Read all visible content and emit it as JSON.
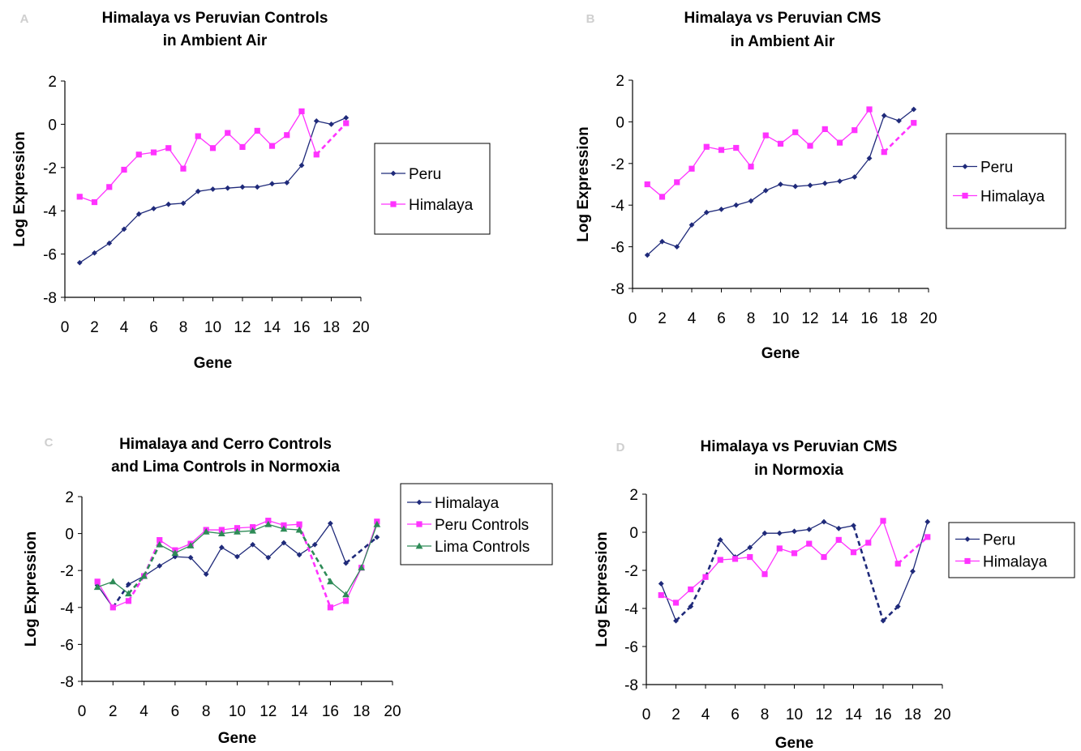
{
  "chart_data": [
    {
      "type": "line",
      "panel": "A",
      "title": [
        "Himalaya vs Peruvian Controls",
        "in Ambient Air"
      ],
      "xlabel": "Gene",
      "ylabel": "Log Expression",
      "xlim": [
        0,
        20
      ],
      "ylim": [
        -8,
        2
      ],
      "xticks": [
        0,
        2,
        4,
        6,
        8,
        10,
        12,
        14,
        16,
        18,
        20
      ],
      "yticks": [
        2,
        0,
        -2,
        -4,
        -6,
        -8
      ],
      "grid": false,
      "legend_position": "right",
      "series": [
        {
          "name": "Peru",
          "color": "#1f2a7a",
          "marker": "diamond",
          "x": [
            1,
            2,
            3,
            4,
            5,
            6,
            7,
            8,
            9,
            10,
            11,
            12,
            13,
            14,
            15,
            16,
            17,
            18,
            19
          ],
          "y": [
            -6.4,
            -5.95,
            -5.5,
            -4.85,
            -4.15,
            -3.9,
            -3.7,
            -3.65,
            -3.1,
            -3.0,
            -2.95,
            -2.9,
            -2.9,
            -2.75,
            -2.7,
            -1.9,
            0.15,
            0.0,
            0.3
          ],
          "dashed_segments": []
        },
        {
          "name": "Himalaya",
          "color": "#ff33ff",
          "marker": "square",
          "x": [
            1,
            2,
            3,
            4,
            5,
            6,
            7,
            8,
            9,
            10,
            11,
            12,
            13,
            14,
            15,
            16,
            17,
            18,
            19
          ],
          "y": [
            -3.35,
            -3.6,
            -2.9,
            -2.1,
            -1.4,
            -1.3,
            -1.1,
            -2.05,
            -0.55,
            -1.1,
            -0.4,
            -1.05,
            -0.3,
            -1.0,
            -0.5,
            0.6,
            -1.4,
            null,
            0.05
          ],
          "dashed_segments": [
            [
              17,
              19
            ]
          ]
        }
      ]
    },
    {
      "type": "line",
      "panel": "B",
      "title": [
        "Himalaya vs Peruvian CMS",
        "in Ambient Air"
      ],
      "xlabel": "Gene",
      "ylabel": "Log Expression",
      "xlim": [
        0,
        20
      ],
      "ylim": [
        -8,
        2
      ],
      "xticks": [
        0,
        2,
        4,
        6,
        8,
        10,
        12,
        14,
        16,
        18,
        20
      ],
      "yticks": [
        2,
        0,
        -2,
        -4,
        -6,
        -8
      ],
      "grid": false,
      "legend_position": "right",
      "series": [
        {
          "name": "Peru",
          "color": "#1f2a7a",
          "marker": "diamond",
          "x": [
            1,
            2,
            3,
            4,
            5,
            6,
            7,
            8,
            9,
            10,
            11,
            12,
            13,
            14,
            15,
            16,
            17,
            18,
            19
          ],
          "y": [
            -6.4,
            -5.75,
            -6.0,
            -4.95,
            -4.35,
            -4.2,
            -4.0,
            -3.8,
            -3.3,
            -3.0,
            -3.1,
            -3.05,
            -2.95,
            -2.85,
            -2.65,
            -1.75,
            0.3,
            0.05,
            0.6
          ],
          "dashed_segments": []
        },
        {
          "name": "Himalaya",
          "color": "#ff33ff",
          "marker": "square",
          "x": [
            1,
            2,
            3,
            4,
            5,
            6,
            7,
            8,
            9,
            10,
            11,
            12,
            13,
            14,
            15,
            16,
            17,
            18,
            19
          ],
          "y": [
            -3.0,
            -3.6,
            -2.9,
            -2.25,
            -1.2,
            -1.35,
            -1.25,
            -2.15,
            -0.65,
            -1.05,
            -0.5,
            -1.15,
            -0.35,
            -1.0,
            -0.4,
            0.6,
            -1.45,
            null,
            -0.05
          ],
          "dashed_segments": [
            [
              17,
              19
            ]
          ]
        }
      ]
    },
    {
      "type": "line",
      "panel": "C",
      "title": [
        "Himalaya and Cerro Controls",
        "and Lima Controls in Normoxia"
      ],
      "xlabel": "Gene",
      "ylabel": "Log Expression",
      "xlim": [
        0,
        20
      ],
      "ylim": [
        -8,
        2
      ],
      "xticks": [
        0,
        2,
        4,
        6,
        8,
        10,
        12,
        14,
        16,
        18,
        20
      ],
      "yticks": [
        2,
        0,
        -2,
        -4,
        -6,
        -8
      ],
      "grid": false,
      "legend_position": "top-right",
      "series": [
        {
          "name": "Himalaya",
          "color": "#1f2a7a",
          "marker": "diamond",
          "x": [
            1,
            2,
            3,
            4,
            5,
            6,
            7,
            8,
            9,
            10,
            11,
            12,
            13,
            14,
            15,
            16,
            17,
            18,
            19
          ],
          "y": [
            -2.8,
            -4.0,
            -2.75,
            -2.3,
            -1.75,
            -1.25,
            -1.3,
            -2.2,
            -0.75,
            -1.25,
            -0.6,
            -1.3,
            -0.5,
            -1.15,
            -0.6,
            0.55,
            -1.6,
            null,
            -0.2
          ],
          "dashed_segments": [
            [
              2,
              3
            ],
            [
              17,
              19
            ]
          ]
        },
        {
          "name": "Peru Controls",
          "color": "#ff33ff",
          "marker": "square",
          "x": [
            1,
            2,
            3,
            4,
            5,
            6,
            7,
            8,
            9,
            10,
            11,
            12,
            13,
            14,
            15,
            16,
            17,
            18,
            19
          ],
          "y": [
            -2.6,
            -4.0,
            -3.65,
            -2.3,
            -0.35,
            -0.9,
            -0.55,
            0.2,
            0.2,
            0.3,
            0.35,
            0.7,
            0.45,
            0.5,
            null,
            -4.0,
            -3.65,
            -1.85,
            0.65
          ],
          "dashed_segments": [
            [
              3,
              5
            ],
            [
              14,
              16
            ]
          ]
        },
        {
          "name": "Lima Controls",
          "color": "#2e8b57",
          "marker": "triangle",
          "x": [
            1,
            2,
            3,
            4,
            5,
            6,
            7,
            8,
            9,
            10,
            11,
            12,
            13,
            14,
            15,
            16,
            17,
            18,
            19
          ],
          "y": [
            -2.9,
            -2.6,
            -3.25,
            -2.3,
            -0.6,
            -1.05,
            -0.65,
            0.1,
            0.0,
            0.1,
            0.15,
            0.5,
            0.25,
            0.2,
            null,
            -2.6,
            -3.3,
            -1.85,
            0.5
          ],
          "dashed_segments": [
            [
              3,
              5
            ],
            [
              14,
              16
            ]
          ]
        }
      ]
    },
    {
      "type": "line",
      "panel": "D",
      "title": [
        "Himalaya vs Peruvian CMS",
        "in Normoxia"
      ],
      "xlabel": "Gene",
      "ylabel": "Log Expression",
      "xlim": [
        0,
        20
      ],
      "ylim": [
        -8,
        2
      ],
      "xticks": [
        0,
        2,
        4,
        6,
        8,
        10,
        12,
        14,
        16,
        18,
        20
      ],
      "yticks": [
        2,
        0,
        -2,
        -4,
        -6,
        -8
      ],
      "grid": false,
      "legend_position": "right",
      "series": [
        {
          "name": "Peru",
          "color": "#1f2a7a",
          "marker": "diamond",
          "x": [
            1,
            2,
            3,
            4,
            5,
            6,
            7,
            8,
            9,
            10,
            11,
            12,
            13,
            14,
            15,
            16,
            17,
            18,
            19
          ],
          "y": [
            -2.7,
            -4.65,
            -3.9,
            -2.35,
            -0.4,
            -1.3,
            -0.8,
            -0.05,
            -0.05,
            0.05,
            0.15,
            0.55,
            0.2,
            0.35,
            null,
            -4.65,
            -3.9,
            -2.05,
            0.55
          ],
          "dashed_segments": [
            [
              2,
              5
            ],
            [
              14,
              17
            ]
          ]
        },
        {
          "name": "Himalaya",
          "color": "#ff33ff",
          "marker": "square",
          "x": [
            1,
            2,
            3,
            4,
            5,
            6,
            7,
            8,
            9,
            10,
            11,
            12,
            13,
            14,
            15,
            16,
            17,
            18,
            19
          ],
          "y": [
            -3.3,
            -3.7,
            -3.0,
            -2.35,
            -1.45,
            -1.4,
            -1.3,
            -2.2,
            -0.85,
            -1.1,
            -0.6,
            -1.3,
            -0.4,
            -1.05,
            -0.55,
            0.6,
            -1.65,
            null,
            -0.25
          ],
          "dashed_segments": [
            [
              17,
              19
            ]
          ]
        }
      ]
    }
  ]
}
